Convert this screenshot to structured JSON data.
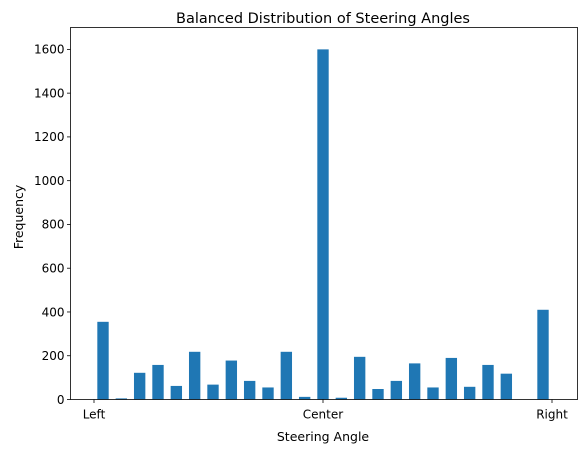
{
  "chart_data": {
    "type": "bar",
    "title": "Balanced Distribution of Steering Angles",
    "xlabel": "Steering Angle",
    "ylabel": "Frequency",
    "ylim": [
      0,
      1700
    ],
    "yticks": [
      0,
      200,
      400,
      600,
      800,
      1000,
      1200,
      1400,
      1600
    ],
    "xtick_labels": [
      "Left",
      "Center",
      "Right"
    ],
    "bar_color": "#1f77b4",
    "grid": false,
    "legend": "none",
    "values": [
      355,
      5,
      122,
      158,
      62,
      218,
      68,
      178,
      85,
      55,
      218,
      12,
      1600,
      8,
      195,
      48,
      85,
      165,
      55,
      190,
      58,
      158,
      118,
      0,
      410
    ]
  }
}
